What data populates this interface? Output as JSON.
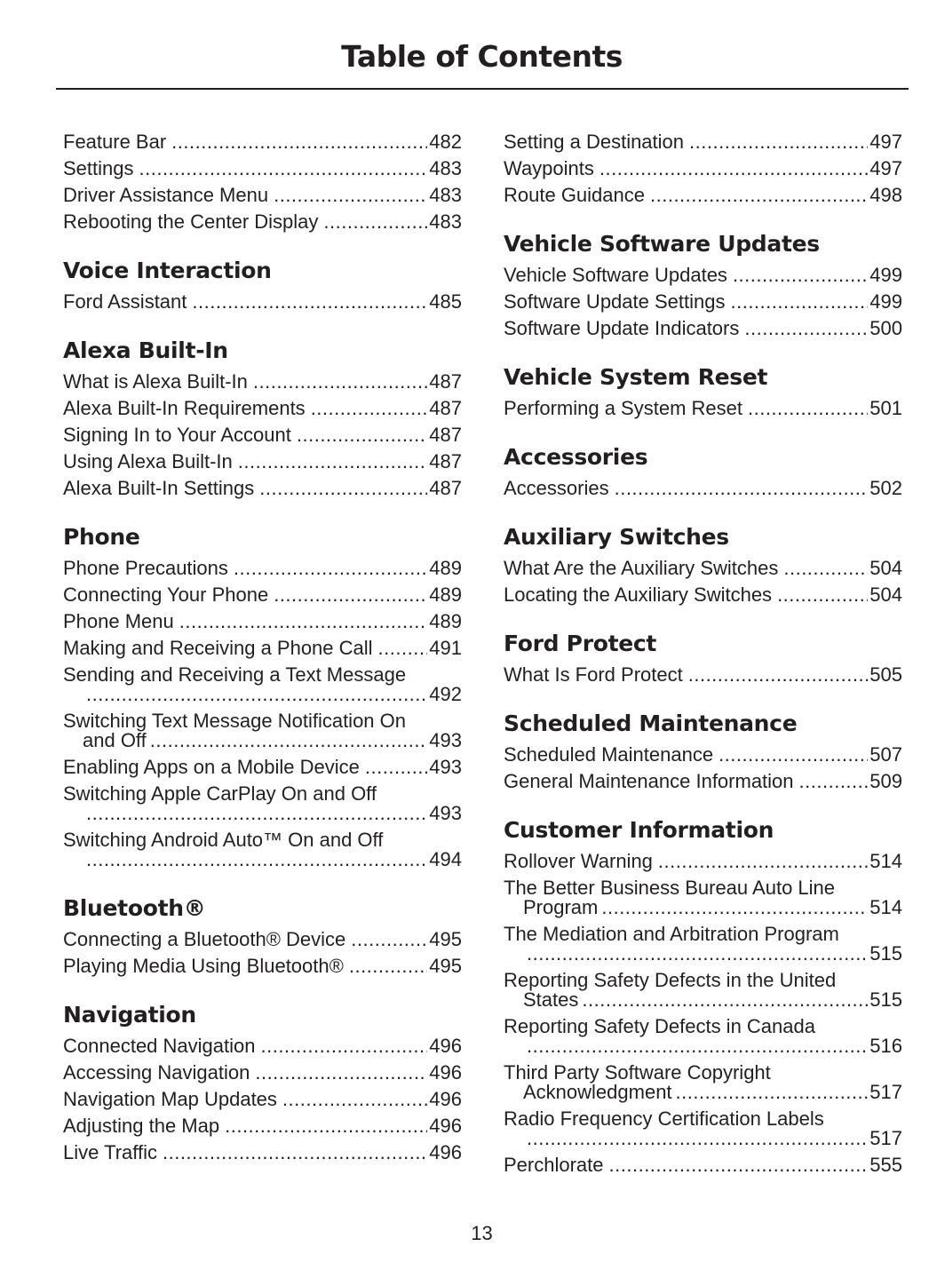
{
  "title": "Table of Contents",
  "page_number": "13",
  "columns": [
    [
      {
        "heading": "",
        "entries": [
          {
            "title": "Feature Bar",
            "page": "482"
          },
          {
            "title": "Settings",
            "page": "483"
          },
          {
            "title": "Driver Assistance Menu",
            "page": "483"
          },
          {
            "title": "Rebooting the Center Display",
            "page": "483"
          }
        ]
      },
      {
        "heading": "Voice Interaction",
        "entries": [
          {
            "title": "Ford Assistant",
            "page": "485"
          }
        ]
      },
      {
        "heading": "Alexa Built-In",
        "entries": [
          {
            "title": "What is Alexa Built-In",
            "page": "487"
          },
          {
            "title": "Alexa Built-In Requirements",
            "page": "487"
          },
          {
            "title": "Signing In to Your Account",
            "page": "487"
          },
          {
            "title": "Using Alexa Built-In",
            "page": "487"
          },
          {
            "title": "Alexa Built-In Settings",
            "page": "487"
          }
        ]
      },
      {
        "heading": "Phone",
        "entries": [
          {
            "title": "Phone Precautions",
            "page": "489"
          },
          {
            "title": "Connecting Your Phone",
            "page": "489"
          },
          {
            "title": "Phone Menu",
            "page": "489"
          },
          {
            "title": "Making and Receiving a Phone Call",
            "page": "491"
          },
          {
            "title": "Sending and Receiving a Text Message",
            "cont": "",
            "page": "492"
          },
          {
            "title": "Switching Text Message Notification On",
            "cont": "and Off",
            "page": "493"
          },
          {
            "title": "Enabling Apps on a Mobile Device",
            "page": "493"
          },
          {
            "title": "Switching Apple CarPlay On and Off",
            "cont": "",
            "page": "493"
          },
          {
            "title": "Switching Android Auto™ On and Off",
            "cont": "",
            "page": "494"
          }
        ]
      },
      {
        "heading": "Bluetooth®",
        "entries": [
          {
            "title": "Connecting a Bluetooth® Device",
            "page": "495"
          },
          {
            "title": "Playing Media Using Bluetooth®",
            "page": "495"
          }
        ]
      },
      {
        "heading": "Navigation",
        "entries": [
          {
            "title": "Connected Navigation",
            "page": "496"
          },
          {
            "title": "Accessing Navigation",
            "page": "496"
          },
          {
            "title": "Navigation Map Updates",
            "page": "496"
          },
          {
            "title": "Adjusting the Map",
            "page": "496"
          },
          {
            "title": "Live Traffic",
            "page": "496"
          }
        ]
      }
    ],
    [
      {
        "heading": "",
        "entries": [
          {
            "title": "Setting a Destination",
            "page": "497"
          },
          {
            "title": "Waypoints",
            "page": "497"
          },
          {
            "title": "Route Guidance",
            "page": "498"
          }
        ]
      },
      {
        "heading": "Vehicle Software Updates",
        "entries": [
          {
            "title": "Vehicle Software Updates",
            "page": "499"
          },
          {
            "title": "Software Update Settings",
            "page": "499"
          },
          {
            "title": "Software Update Indicators",
            "page": "500"
          }
        ]
      },
      {
        "heading": "Vehicle System Reset",
        "entries": [
          {
            "title": "Performing a System Reset",
            "page": "501"
          }
        ]
      },
      {
        "heading": "Accessories",
        "entries": [
          {
            "title": "Accessories",
            "page": "502"
          }
        ]
      },
      {
        "heading": "Auxiliary Switches",
        "entries": [
          {
            "title": "What Are the Auxiliary Switches",
            "page": "504"
          },
          {
            "title": "Locating the Auxiliary Switches",
            "page": "504"
          }
        ]
      },
      {
        "heading": "Ford Protect",
        "entries": [
          {
            "title": "What Is Ford Protect",
            "page": "505"
          }
        ]
      },
      {
        "heading": "Scheduled Maintenance",
        "entries": [
          {
            "title": "Scheduled Maintenance",
            "page": "507"
          },
          {
            "title": "General Maintenance Information",
            "page": "509"
          }
        ]
      },
      {
        "heading": "Customer Information",
        "entries": [
          {
            "title": "Rollover Warning",
            "page": "514"
          },
          {
            "title": "The Better Business Bureau Auto Line",
            "cont": "Program",
            "page": "514"
          },
          {
            "title": "The Mediation and Arbitration Program",
            "cont": "",
            "page": "515"
          },
          {
            "title": "Reporting Safety Defects in the United",
            "cont": "States",
            "page": "515"
          },
          {
            "title": "Reporting Safety Defects in Canada",
            "cont": "",
            "page": "516"
          },
          {
            "title": "Third Party Software Copyright",
            "cont": "Acknowledgment",
            "page": "517"
          },
          {
            "title": "Radio Frequency Certification Labels",
            "cont": "",
            "page": "517"
          },
          {
            "title": "Perchlorate",
            "page": "555"
          }
        ]
      }
    ]
  ]
}
